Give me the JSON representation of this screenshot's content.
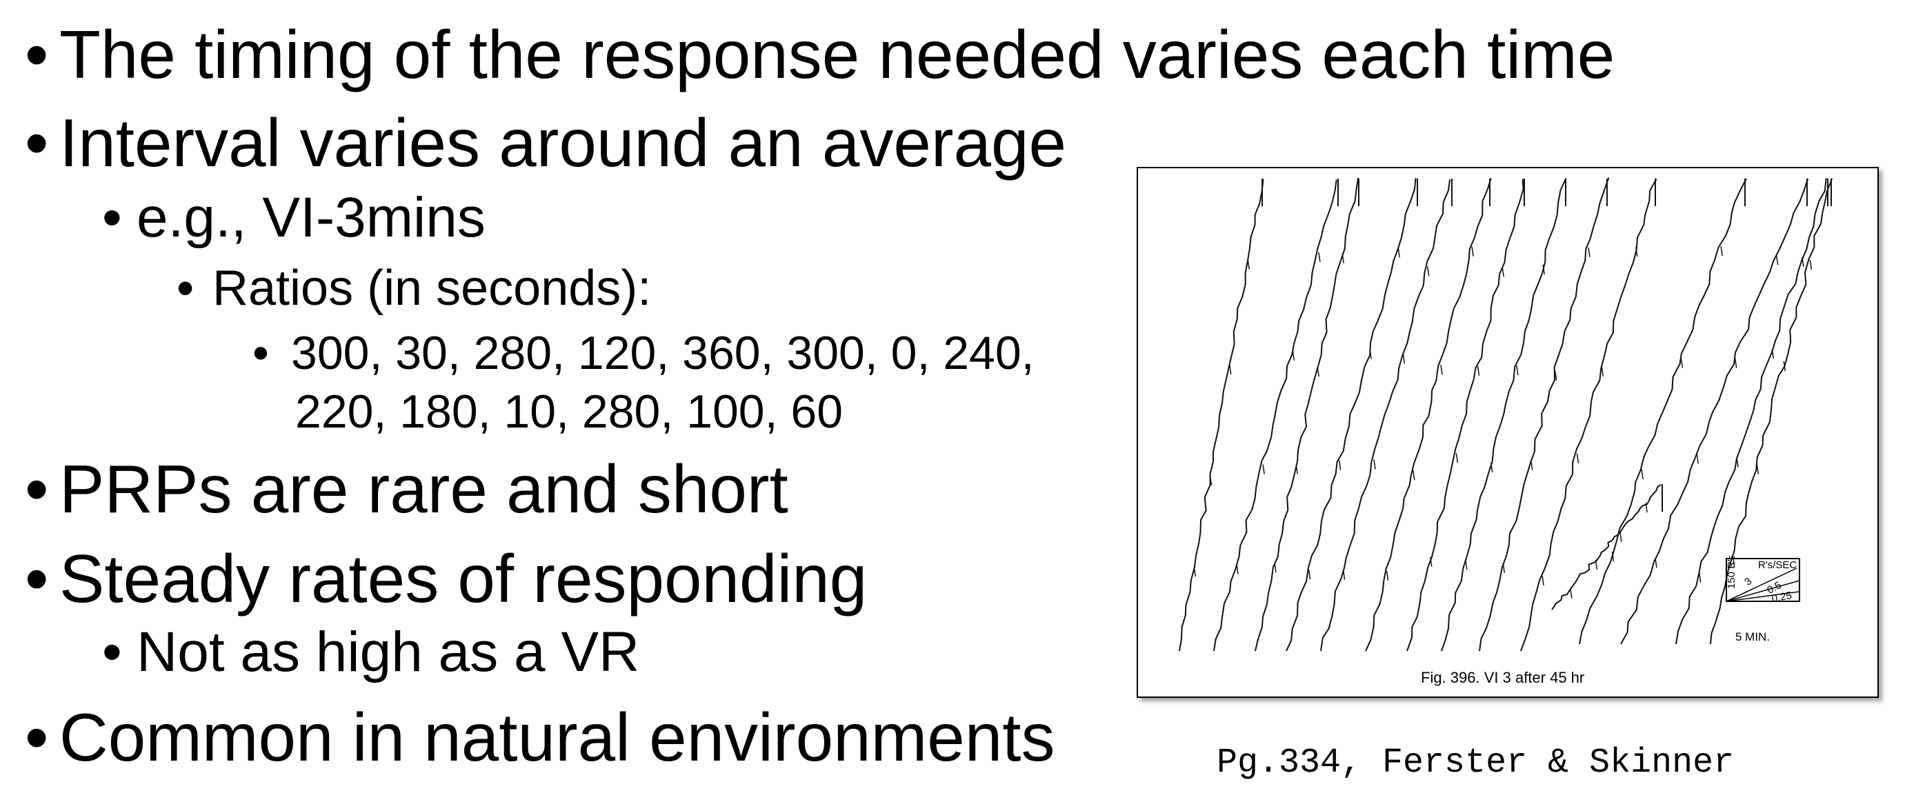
{
  "bullets": [
    {
      "id": "b1",
      "level": 1,
      "text": "The timing of the response needed varies each time"
    },
    {
      "id": "b2",
      "level": 1,
      "text": "Interval varies around an average"
    },
    {
      "id": "b3",
      "level": 2,
      "text": "e.g., VI-3mins"
    },
    {
      "id": "b4",
      "level": 3,
      "text": "Ratios (in seconds):"
    },
    {
      "id": "b5",
      "level": 4,
      "text": "300, 30, 280, 120, 360, 300, 0, 240,"
    },
    {
      "id": "b5b",
      "level": 4,
      "text": "220, 180, 10, 280, 100, 60"
    },
    {
      "id": "b6",
      "level": 1,
      "text": "PRPs are rare and short"
    },
    {
      "id": "b7",
      "level": 1,
      "text": "Steady rates of responding"
    },
    {
      "id": "b8",
      "level": 2,
      "text": "Not as high as a VR"
    },
    {
      "id": "b9",
      "level": 1,
      "text": "Common in natural environments"
    }
  ],
  "bullet_glyph": "•",
  "figure": {
    "caption": "Fig. 396.   VI 3 after 45 hr",
    "key": {
      "y_label": "150 R's",
      "rate_title": "R's/SEC",
      "rate_values": [
        "3",
        "0.5",
        "0.25"
      ],
      "x_label": "5 MIN."
    }
  },
  "source": "Pg.334, Ferster & Skinner"
}
